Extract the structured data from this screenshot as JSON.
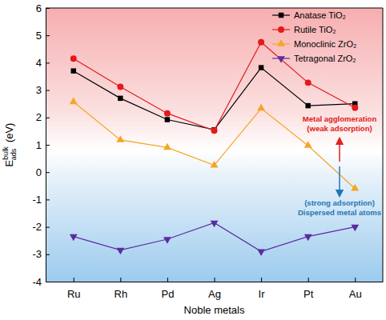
{
  "chart_data": {
    "type": "line",
    "xlabel": "Noble metals",
    "ylabel": "E",
    "ylabel_sub": "ads",
    "ylabel_sup": "bulk",
    "ylabel_unit": " (eV)",
    "categories": [
      "Ru",
      "Rh",
      "Pd",
      "Ag",
      "Ir",
      "Pt",
      "Au"
    ],
    "series": [
      {
        "name": "Anatase TiO₂",
        "color": "#000000",
        "marker": "square",
        "values": [
          3.7,
          2.7,
          1.92,
          1.55,
          3.82,
          2.43,
          2.5
        ]
      },
      {
        "name": "Rutile TiO₂",
        "color": "#e31a1c",
        "marker": "circle",
        "values": [
          4.15,
          3.12,
          2.15,
          1.52,
          4.75,
          3.27,
          2.35
        ]
      },
      {
        "name": "Monoclinic ZrO₂",
        "color": "#f5a623",
        "marker": "triangle-up",
        "values": [
          2.57,
          1.18,
          0.9,
          0.25,
          2.33,
          0.97,
          -0.6
        ]
      },
      {
        "name": "Tetragonal ZrO₂",
        "color": "#5b2ca0",
        "marker": "triangle-down",
        "values": [
          -2.35,
          -2.85,
          -2.45,
          -1.85,
          -2.9,
          -2.35,
          -2.0
        ]
      }
    ],
    "ylim": [
      -4,
      6
    ],
    "yticks": [
      -4,
      -3,
      -2,
      -1,
      0,
      1,
      2,
      3,
      4,
      5,
      6
    ],
    "grid": false,
    "legend": "top-right",
    "annotations": [
      {
        "lines": [
          "Metal agglomeration",
          "(weak adsorption)"
        ],
        "color": "#e0201c"
      },
      {
        "lines": [
          "(strong adsorption)",
          "Dispersed metal atoms"
        ],
        "color": "#1f77b4"
      }
    ]
  }
}
